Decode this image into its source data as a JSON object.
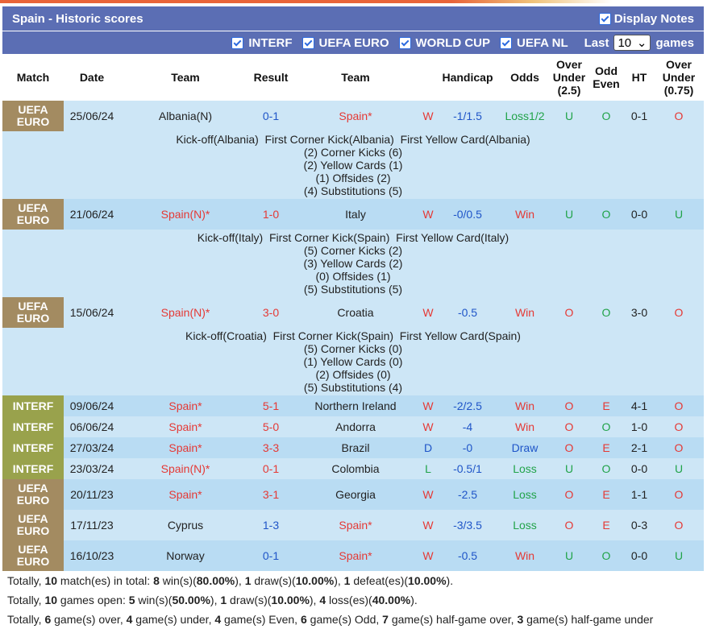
{
  "header": {
    "title": "Spain - Historic scores",
    "display_notes": "Display Notes"
  },
  "filters": {
    "items": [
      "INTERF",
      "UEFA EURO",
      "WORLD CUP",
      "UEFA NL"
    ],
    "last_label": "Last",
    "last_value": "10",
    "games_label": "games"
  },
  "columns": [
    "Match",
    "Date",
    "Team",
    "Result",
    "Team",
    "Handicap",
    "Odds",
    "Over Under (2.5)",
    "Odd Even",
    "HT",
    "Over Under (0.75)"
  ],
  "matches": [
    {
      "comp": "UEFA EURO",
      "date": "25/06/24",
      "home": "Albania(N)",
      "result": "0-1",
      "away": "Spain*",
      "wl": "W",
      "handicap": "-1/1.5",
      "odds": "Loss1/2",
      "ou": "U",
      "oe": "O",
      "ht": "0-1",
      "ou2": "O",
      "note": {
        "line1": "Kick-off(Albania)  First Corner Kick(Albania)  First Yellow Card(Albania)",
        "line2": "(2) Corner Kicks (6)",
        "line3": "(2) Yellow Cards (1)",
        "line4": "(1) Offsides (2)",
        "line5": "(4) Substitutions (5)"
      }
    },
    {
      "comp": "UEFA EURO",
      "date": "21/06/24",
      "home": "Spain(N)*",
      "result": "1-0",
      "away": "Italy",
      "wl": "W",
      "handicap": "-0/0.5",
      "odds": "Win",
      "ou": "U",
      "oe": "O",
      "ht": "0-0",
      "ou2": "U",
      "note": {
        "line1": "Kick-off(Italy)  First Corner Kick(Spain)  First Yellow Card(Italy)",
        "line2": "(5) Corner Kicks (2)",
        "line3": "(3) Yellow Cards (2)",
        "line4": "(0) Offsides (1)",
        "line5": "(5) Substitutions (5)"
      }
    },
    {
      "comp": "UEFA EURO",
      "date": "15/06/24",
      "home": "Spain(N)*",
      "result": "3-0",
      "away": "Croatia",
      "wl": "W",
      "handicap": "-0.5",
      "odds": "Win",
      "ou": "O",
      "oe": "O",
      "ht": "3-0",
      "ou2": "O",
      "note": {
        "line1": "Kick-off(Croatia)  First Corner Kick(Spain)  First Yellow Card(Spain)",
        "line2": "(5) Corner Kicks (0)",
        "line3": "(1) Yellow Cards (0)",
        "line4": "(2) Offsides (0)",
        "line5": "(5) Substitutions (4)"
      }
    },
    {
      "comp": "INTERF",
      "date": "09/06/24",
      "home": "Spain*",
      "result": "5-1",
      "away": "Northern Ireland",
      "wl": "W",
      "handicap": "-2/2.5",
      "odds": "Win",
      "ou": "O",
      "oe": "E",
      "ht": "4-1",
      "ou2": "O"
    },
    {
      "comp": "INTERF",
      "date": "06/06/24",
      "home": "Spain*",
      "result": "5-0",
      "away": "Andorra",
      "wl": "W",
      "handicap": "-4",
      "odds": "Win",
      "ou": "O",
      "oe": "O",
      "ht": "1-0",
      "ou2": "O"
    },
    {
      "comp": "INTERF",
      "date": "27/03/24",
      "home": "Spain*",
      "result": "3-3",
      "away": "Brazil",
      "wl": "D",
      "handicap": "-0",
      "odds": "Draw",
      "ou": "O",
      "oe": "E",
      "ht": "2-1",
      "ou2": "O"
    },
    {
      "comp": "INTERF",
      "date": "23/03/24",
      "home": "Spain(N)*",
      "result": "0-1",
      "away": "Colombia",
      "wl": "L",
      "handicap": "-0.5/1",
      "odds": "Loss",
      "ou": "U",
      "oe": "O",
      "ht": "0-0",
      "ou2": "U"
    },
    {
      "comp": "UEFA EURO",
      "date": "20/11/23",
      "home": "Spain*",
      "result": "3-1",
      "away": "Georgia",
      "wl": "W",
      "handicap": "-2.5",
      "odds": "Loss",
      "ou": "O",
      "oe": "E",
      "ht": "1-1",
      "ou2": "O"
    },
    {
      "comp": "UEFA EURO",
      "date": "17/11/23",
      "home": "Cyprus",
      "result": "1-3",
      "away": "Spain*",
      "wl": "W",
      "handicap": "-3/3.5",
      "odds": "Loss",
      "ou": "O",
      "oe": "E",
      "ht": "0-3",
      "ou2": "O"
    },
    {
      "comp": "UEFA EURO",
      "date": "16/10/23",
      "home": "Norway",
      "result": "0-1",
      "away": "Spain*",
      "wl": "W",
      "handicap": "-0.5",
      "odds": "Win",
      "ou": "U",
      "oe": "O",
      "ht": "0-0",
      "ou2": "U"
    }
  ],
  "summary": {
    "line1": {
      "a": "Totally, ",
      "n1": "10",
      "b": " match(es) in total: ",
      "w": "8",
      "c": " win(s)(",
      "wp": "80.00%",
      "d": "), ",
      "dr": "1",
      "e": " draw(s)(",
      "dp": "10.00%",
      "f": "), ",
      "l": "1",
      "g": " defeat(es)(",
      "lp": "10.00%",
      "h": ")."
    },
    "line2": {
      "a": "Totally, ",
      "n1": "10",
      "b": " games open: ",
      "w": "5",
      "c": " win(s)(",
      "wp": "50.00%",
      "d": "), ",
      "dr": "1",
      "e": " draw(s)(",
      "dp": "10.00%",
      "f": "), ",
      "l": "4",
      "g": " loss(es)(",
      "lp": "40.00%",
      "h": ")."
    },
    "line3": {
      "a": "Totally, ",
      "o": "6",
      "b": " game(s) over, ",
      "u": "4",
      "c": " game(s) under, ",
      "ev": "4",
      "d": " game(s) Even, ",
      "od": "6",
      "e": " game(s) Odd, ",
      "ho": "7",
      "f": " game(s) half-game over, ",
      "hu": "3",
      "g": " game(s) half-game under"
    }
  },
  "colors": {
    "header_bg": "#5b6eb4",
    "euro": "#a38b61",
    "interf": "#99a24c",
    "red": "#e53935",
    "blue": "#1f55c8",
    "green": "#21a349"
  }
}
